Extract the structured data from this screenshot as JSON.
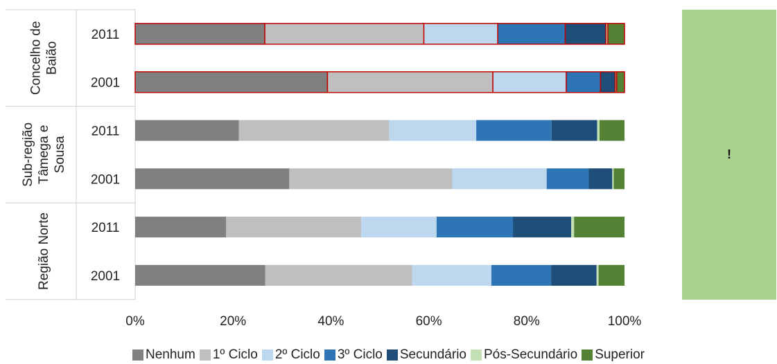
{
  "chart_data": {
    "type": "bar",
    "orientation": "horizontal",
    "stacked": "percent",
    "title": "",
    "xlabel": "",
    "ylabel": "",
    "xlim": [
      0,
      100
    ],
    "x_ticks": [
      "0%",
      "20%",
      "40%",
      "60%",
      "80%",
      "100%"
    ],
    "legend_position": "bottom",
    "grid": false,
    "groups": [
      {
        "label": "Concelho de Baião",
        "lines": [
          "Concelho de",
          "Baião"
        ],
        "categories": [
          "2011",
          "2001"
        ]
      },
      {
        "label": "Sub-região Tâmega e Sousa",
        "lines": [
          "Sub-região",
          "Tâmega e",
          "Sousa"
        ],
        "categories": [
          "2011",
          "2001"
        ]
      },
      {
        "label": "Região Norte",
        "lines": [
          "Região Norte"
        ],
        "categories": [
          "2011",
          "2001"
        ]
      }
    ],
    "categories": [
      "Concelho de Baião 2011",
      "Concelho de Baião 2001",
      "Sub-região Tâmega e Sousa 2011",
      "Sub-região Tâmega e Sousa 2001",
      "Região Norte 2011",
      "Região Norte 2001"
    ],
    "series": [
      {
        "name": "Nenhum",
        "color": "#808080",
        "values": [
          26.5,
          39.3,
          21.2,
          31.5,
          18.6,
          26.6
        ]
      },
      {
        "name": "1º Ciclo",
        "color": "#bfbfbf",
        "values": [
          32.5,
          33.8,
          30.7,
          33.3,
          27.6,
          30.0
        ]
      },
      {
        "name": "2º Ciclo",
        "color": "#bdd7ee",
        "values": [
          15.1,
          15.0,
          17.8,
          19.3,
          15.4,
          16.2
        ]
      },
      {
        "name": "3º Ciclo",
        "color": "#2e75b6",
        "values": [
          13.8,
          7.0,
          15.4,
          8.6,
          15.6,
          12.2
        ]
      },
      {
        "name": "Secundário",
        "color": "#1f4e79",
        "values": [
          8.3,
          3.0,
          9.3,
          4.8,
          11.9,
          9.3
        ]
      },
      {
        "name": "Pós-Secundário",
        "color": "#c5e0b4",
        "values": [
          0.4,
          0.3,
          0.5,
          0.3,
          0.6,
          0.4
        ]
      },
      {
        "name": "Superior",
        "color": "#548235",
        "values": [
          3.4,
          1.6,
          5.1,
          2.2,
          10.3,
          5.3
        ]
      }
    ],
    "highlight_outline": {
      "color": "#c00000",
      "groups": [
        "Concelho de Baião"
      ]
    }
  },
  "side_panel": {
    "text": "!",
    "color": "#a9d18e"
  }
}
